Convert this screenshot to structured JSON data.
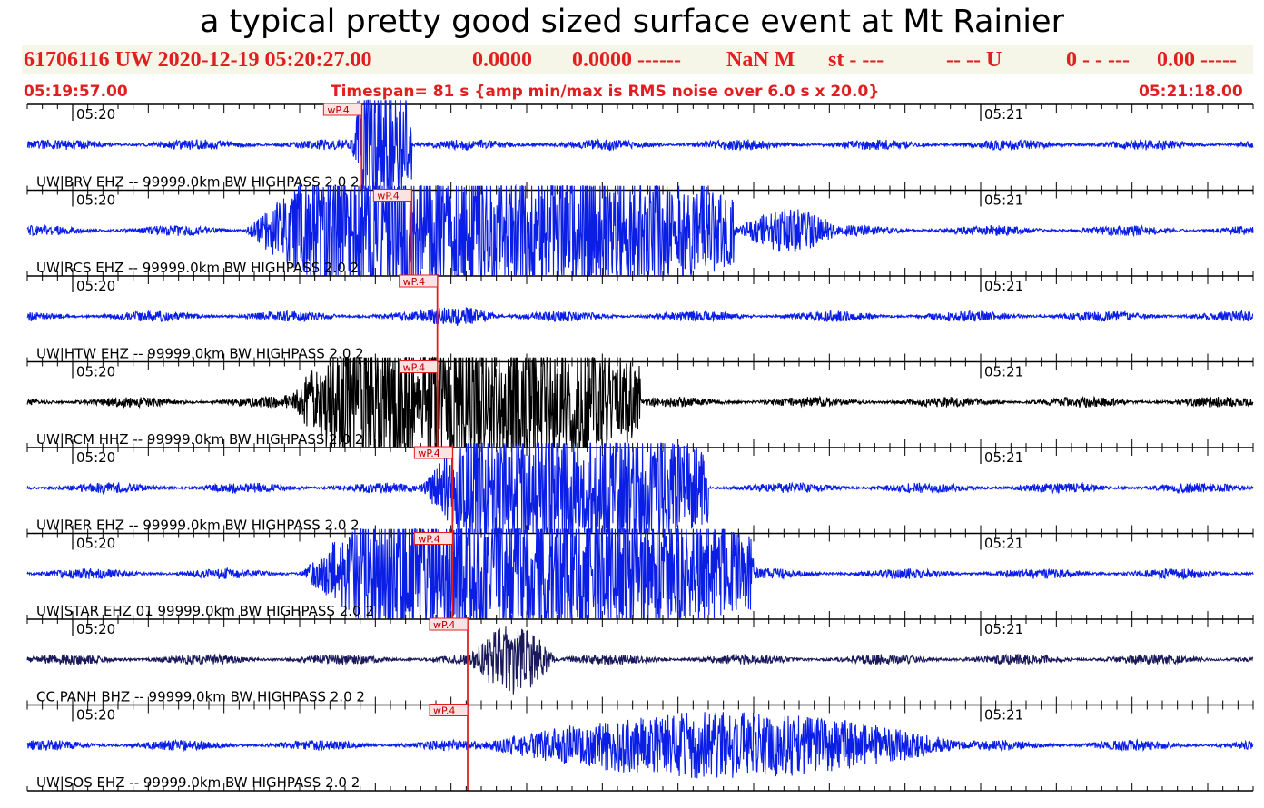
{
  "title": "a typical pretty good sized surface event at Mt Rainier",
  "header": {
    "event_id": "61706116 UW 2020-12-19 05:20:27.00",
    "lat": "0.0000",
    "lon": "0.0000 ------",
    "mag": "NaN M",
    "type": "st - ---",
    "flags": "-- -- U",
    "count": "0 - - ---",
    "value": "0.00 -----"
  },
  "subheader": {
    "start_time": "05:19:57.00",
    "timespan": "Timespan= 81 s {amp min/max is RMS noise over 6.0 s x 20.0}",
    "end_time": "05:21:18.00"
  },
  "chart_data": {
    "type": "line",
    "title": "a typical pretty good sized surface event at Mt Rainier",
    "x_unit": "seconds from 05:19:57.00",
    "xlim": [
      0,
      81
    ],
    "minute_marks": [
      {
        "label": "05:20",
        "t": 3
      },
      {
        "label": "05:21",
        "t": 63
      }
    ],
    "colors": {
      "trace_blue": "#0a1ee6",
      "trace_black": "#000000",
      "trace_navy": "#1a1a5a",
      "pick": "#e02020"
    },
    "series": [
      {
        "name": "UW|BRV EHZ -- 99999.0km BW HIGHPASS 2.0 2",
        "color": "#0a1ee6",
        "pick_label": "wP.4",
        "pick_t": 22.1,
        "tick_label_left": "05:20",
        "tick_label_right": "05:21",
        "noise": 0.12,
        "bursts": [
          {
            "start": 21.4,
            "end": 25.4,
            "amp": 1.0,
            "clip": true
          }
        ]
      },
      {
        "name": "UW|RCS EHZ -- 99999.0km BW HIGHPASS 2.0 2",
        "color": "#0a1ee6",
        "pick_label": "wP.4",
        "pick_t": 25.4,
        "tick_label_left": "05:20",
        "tick_label_right": "05:21",
        "noise": 0.12,
        "bursts": [
          {
            "start": 14.3,
            "end": 46.7,
            "amp": 1.0,
            "clip": true
          },
          {
            "start": 46.7,
            "end": 54.0,
            "amp": 0.5,
            "clip": false
          }
        ]
      },
      {
        "name": "UW|HTW EHZ -- 99999.0km BW HIGHPASS 2.0 2",
        "color": "#0a1ee6",
        "pick_label": "wP.4",
        "pick_t": 27.1,
        "tick_label_left": "05:20",
        "tick_label_right": "05:21",
        "noise": 0.12,
        "bursts": [
          {
            "start": 25.0,
            "end": 31.5,
            "amp": 0.22,
            "clip": false
          }
        ]
      },
      {
        "name": "UW|RCM HHZ -- 99999.0km BW HIGHPASS 2.0 2",
        "color": "#000000",
        "pick_label": "wP.4",
        "pick_t": 27.1,
        "tick_label_left": "05:20",
        "tick_label_right": "05:21",
        "noise": 0.12,
        "bursts": [
          {
            "start": 17.0,
            "end": 40.5,
            "amp": 1.0,
            "clip": true
          }
        ]
      },
      {
        "name": "UW|RER EHZ -- 99999.0km BW HIGHPASS 2.0 2",
        "color": "#0a1ee6",
        "pick_label": "wP.4",
        "pick_t": 28.1,
        "tick_label_left": "05:20",
        "tick_label_right": "05:21",
        "noise": 0.12,
        "bursts": [
          {
            "start": 26.0,
            "end": 45.0,
            "amp": 0.95,
            "clip": true
          }
        ]
      },
      {
        "name": "UW|STAR EHZ 01 99999.0km BW HIGHPASS 2.0 2",
        "color": "#0a1ee6",
        "pick_label": "wP.4",
        "pick_t": 28.1,
        "tick_label_left": "05:20",
        "tick_label_right": "05:21",
        "noise": 0.12,
        "bursts": [
          {
            "start": 18.0,
            "end": 48.0,
            "amp": 1.0,
            "clip": true
          }
        ]
      },
      {
        "name": "CC PANH BHZ -- 99999.0km BW HIGHPASS 2.0 2",
        "color": "#1a1a5a",
        "pick_label": "wP.4",
        "pick_t": 29.1,
        "tick_label_left": "05:20",
        "tick_label_right": "05:21",
        "noise": 0.12,
        "bursts": [
          {
            "start": 29.0,
            "end": 35.0,
            "amp": 0.8,
            "clip": false
          }
        ]
      },
      {
        "name": "UW|SOS EHZ -- 99999.0km BW HIGHPASS 2.0 2",
        "color": "#0a1ee6",
        "pick_label": "wP.4",
        "pick_t": 29.1,
        "tick_label_left": "05:20",
        "tick_label_right": "05:21",
        "noise": 0.12,
        "bursts": [
          {
            "start": 29.0,
            "end": 63.0,
            "amp": 0.75,
            "clip": false
          }
        ]
      }
    ]
  }
}
